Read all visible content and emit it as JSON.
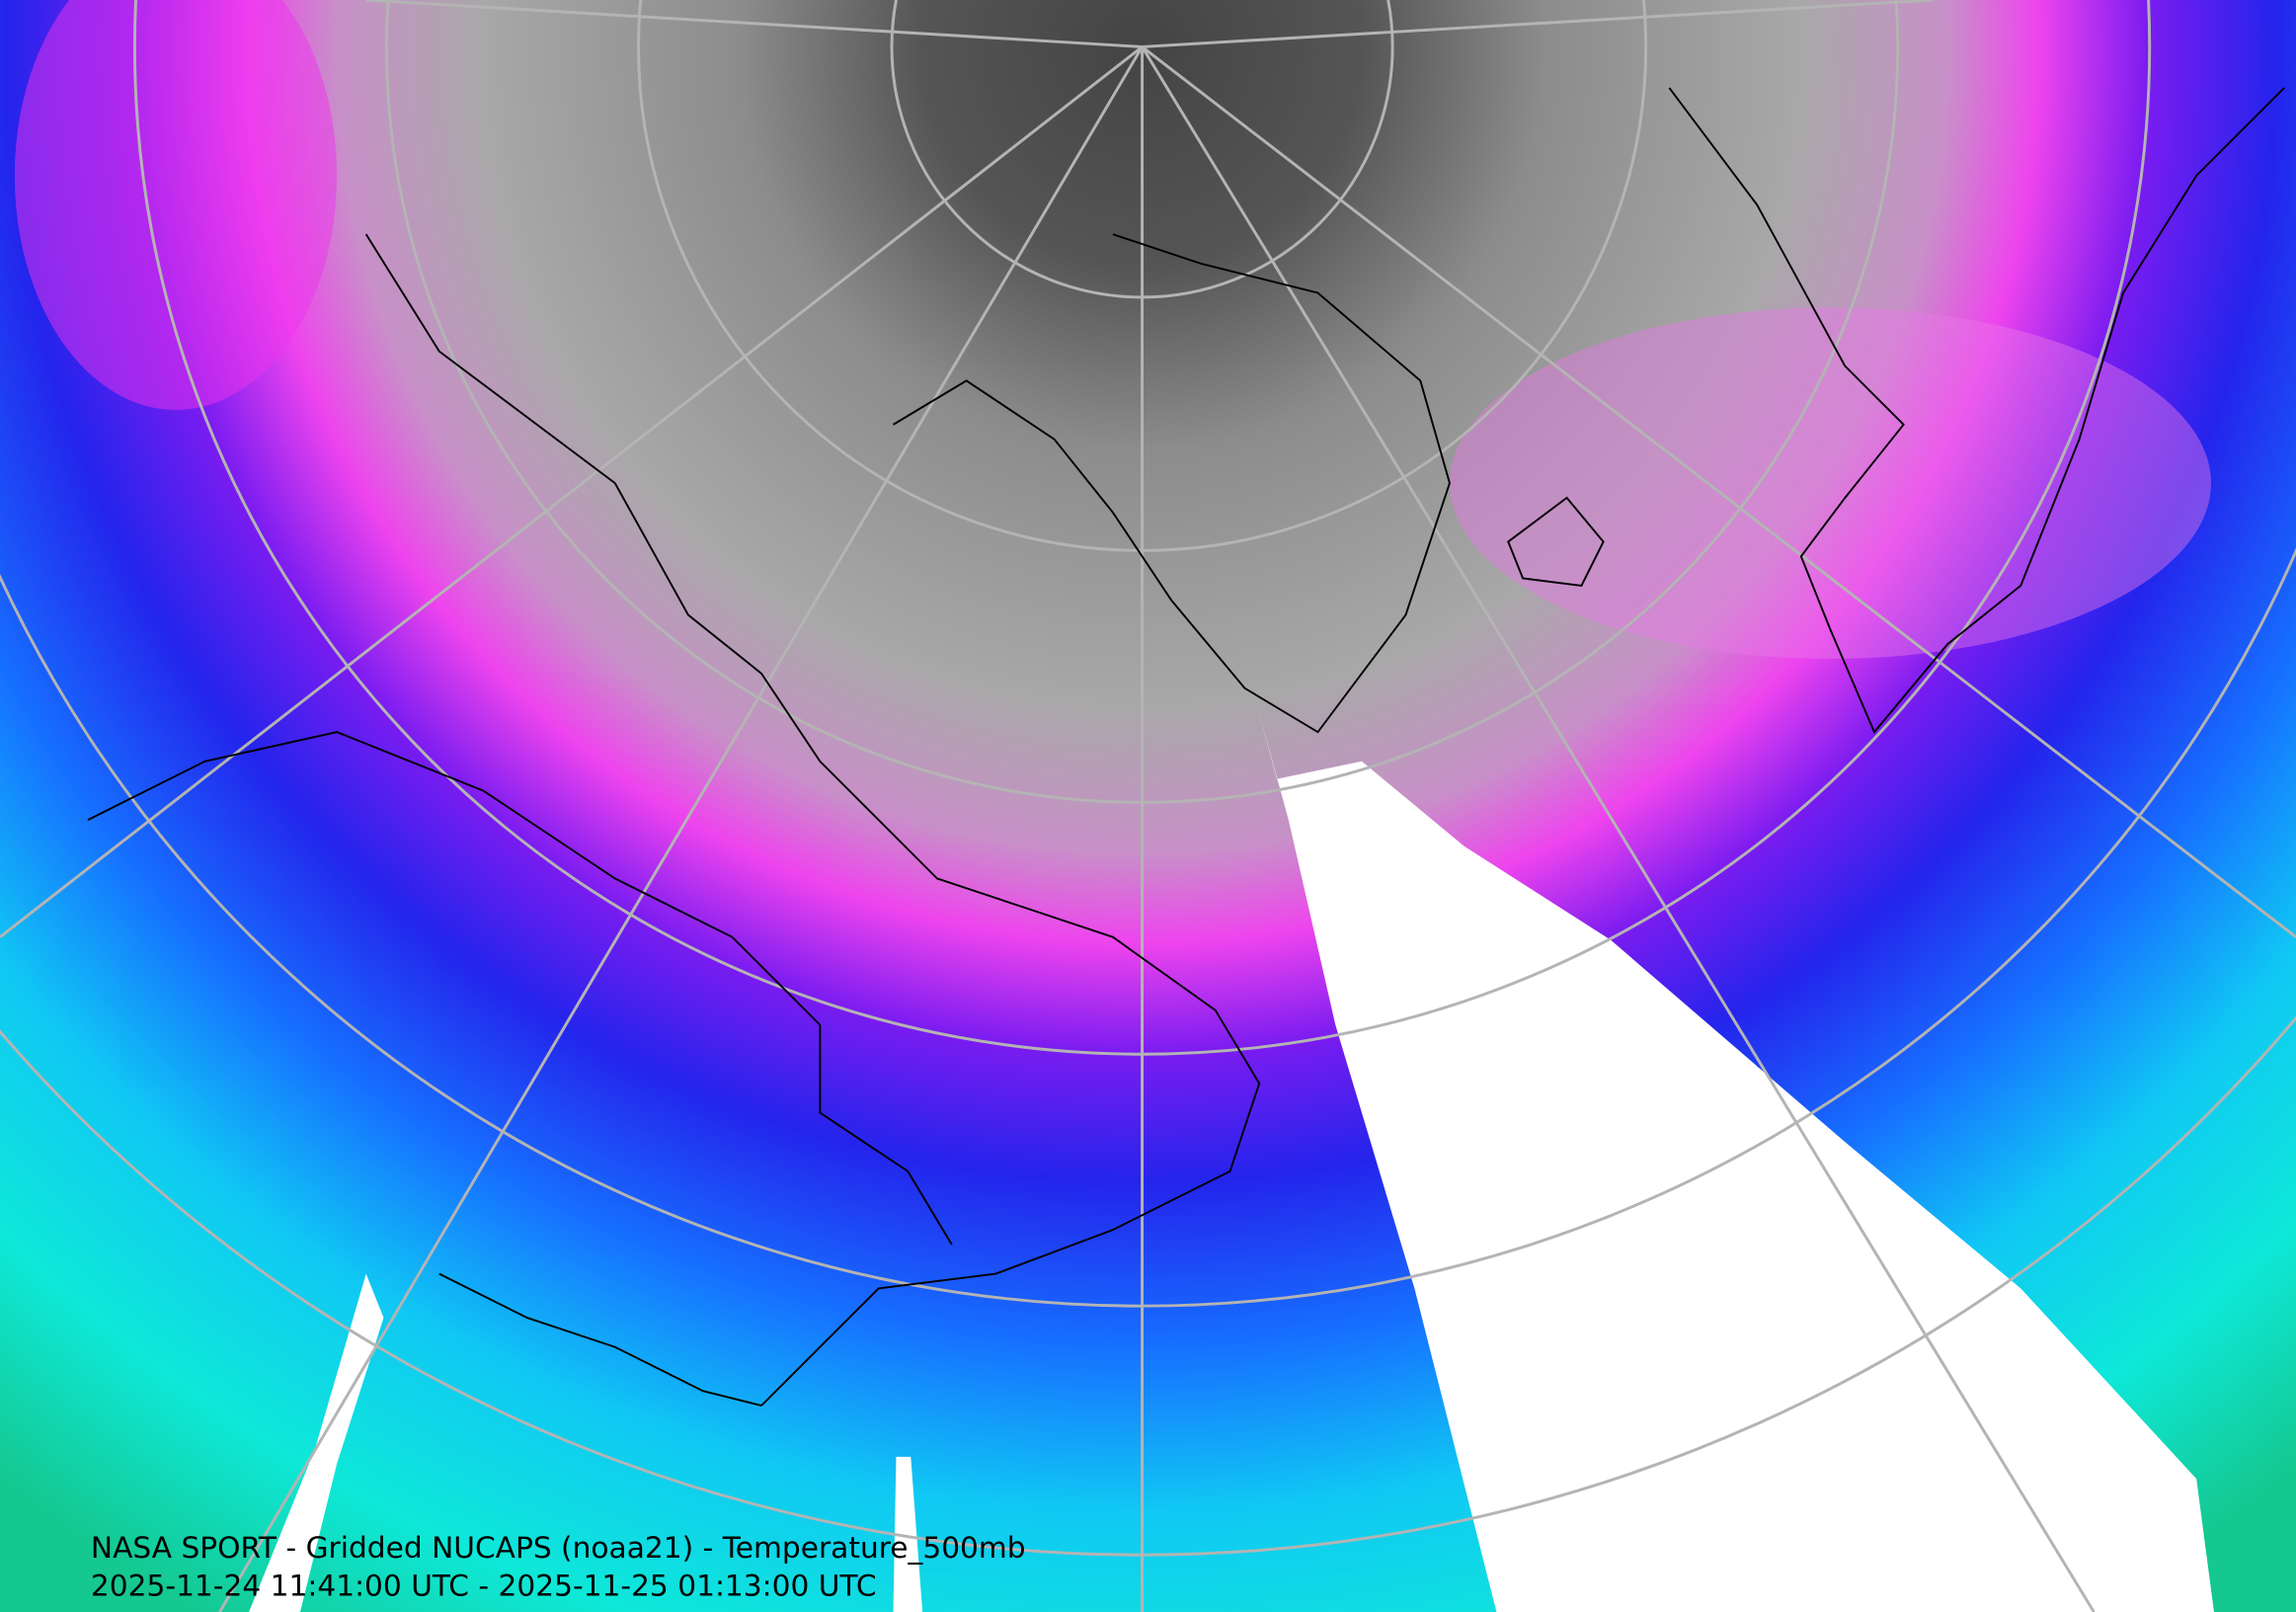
{
  "caption": {
    "title": "NASA SPORT - Gridded NUCAPS (noaa21) - Temperature_500mb",
    "time_range": "2025-11-24 11:41:00 UTC - 2025-11-25 01:13:00 UTC"
  }
}
